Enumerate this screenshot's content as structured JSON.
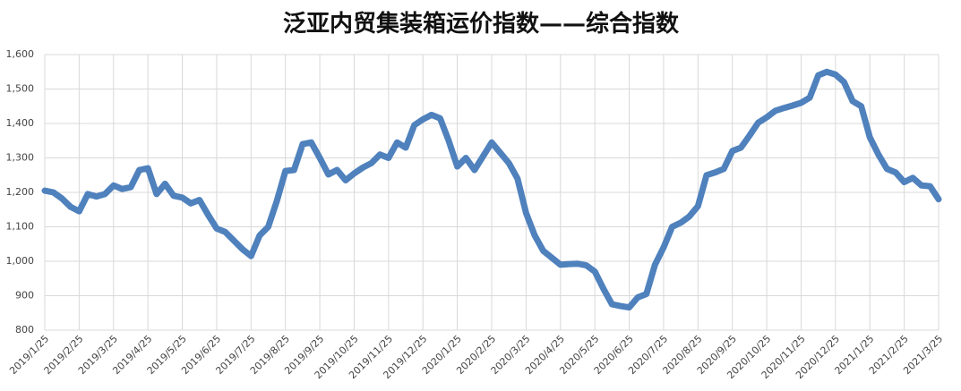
{
  "chart_data": {
    "type": "line",
    "title": "泛亚内贸集装箱运价指数——综合指数",
    "categories": [
      "2019/1/25",
      null,
      null,
      null,
      "2019/2/25",
      null,
      null,
      null,
      "2019/3/25",
      null,
      null,
      null,
      "2019/4/25",
      null,
      null,
      null,
      "2019/5/25",
      null,
      null,
      null,
      "2019/6/25",
      null,
      null,
      null,
      "2019/7/25",
      null,
      null,
      null,
      "2019/8/25",
      null,
      null,
      null,
      "2019/9/25",
      null,
      null,
      null,
      "2019/10/25",
      null,
      null,
      null,
      "2019/11/25",
      null,
      null,
      null,
      "2019/12/25",
      null,
      null,
      null,
      "2020/1/25",
      null,
      null,
      null,
      "2020/2/25",
      null,
      null,
      null,
      "2020/3/25",
      null,
      null,
      null,
      "2020/4/25",
      null,
      null,
      null,
      "2020/5/25",
      null,
      null,
      null,
      "2020/6/25",
      null,
      null,
      null,
      "2020/7/25",
      null,
      null,
      null,
      "2020/8/25",
      null,
      null,
      null,
      "2020/9/25",
      null,
      null,
      null,
      "2020/10/25",
      null,
      null,
      null,
      "2020/11/25",
      null,
      null,
      null,
      "2020/12/25",
      null,
      null,
      null,
      "2021/1/25",
      null,
      null,
      null,
      "2021/2/25",
      null,
      null,
      null,
      "2021/3/25"
    ],
    "series": [
      {
        "name": "综合指数",
        "color": "#4f81bd",
        "values": [
          1205,
          1200,
          1182,
          1158,
          1145,
          1195,
          1188,
          1195,
          1220,
          1210,
          1215,
          1265,
          1270,
          1195,
          1225,
          1190,
          1185,
          1168,
          1178,
          1135,
          1095,
          1085,
          1060,
          1035,
          1015,
          1075,
          1100,
          1175,
          1262,
          1265,
          1340,
          1345,
          1300,
          1252,
          1265,
          1235,
          1255,
          1272,
          1285,
          1310,
          1300,
          1345,
          1330,
          1395,
          1412,
          1425,
          1415,
          1350,
          1275,
          1300,
          1265,
          1305,
          1345,
          1315,
          1285,
          1240,
          1140,
          1075,
          1030,
          1010,
          990,
          992,
          993,
          988,
          970,
          920,
          875,
          870,
          866,
          895,
          905,
          990,
          1040,
          1100,
          1112,
          1130,
          1160,
          1250,
          1258,
          1268,
          1320,
          1330,
          1365,
          1402,
          1418,
          1437,
          1445,
          1452,
          1460,
          1475,
          1540,
          1550,
          1542,
          1520,
          1465,
          1450,
          1360,
          1310,
          1268,
          1258,
          1230,
          1242,
          1220,
          1218,
          1180
        ]
      }
    ],
    "ylim": [
      800,
      1600
    ],
    "yticks": [
      800,
      900,
      {
        "value": 1000,
        "label": "1,000"
      },
      {
        "value": 1100,
        "label": "1,100"
      },
      {
        "value": 1200,
        "label": "1,200"
      },
      {
        "value": 1300,
        "label": "1,300"
      },
      {
        "value": 1400,
        "label": "1,400"
      },
      {
        "value": 1500,
        "label": "1,500"
      },
      {
        "value": 1600,
        "label": "1,600"
      }
    ],
    "grid": true
  }
}
